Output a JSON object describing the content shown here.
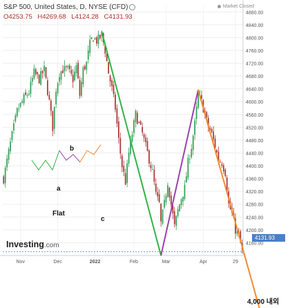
{
  "header": {
    "symbol": "S&P 500, United States, D, NYSE (CFD)",
    "ohlc": {
      "open": "O4253.75",
      "high": "H4269.68",
      "low": "L4124.28",
      "close": "C4131.93"
    },
    "status": "Market Closed"
  },
  "logo": {
    "name": "Investing",
    "suffix": ".com"
  },
  "annotations": {
    "a": "a",
    "b": "b",
    "c": "c",
    "flat": "Flat",
    "target": "4,000 내외"
  },
  "colors": {
    "bull": "#2e9e52",
    "bear": "#a83232",
    "wave_a_green": "#2fb344",
    "wave_b_purple": "#9a3fb0",
    "wave_c_orange": "#f08a2e",
    "price_label": "#4a7fc6"
  },
  "chart_data": {
    "type": "candlestick",
    "title": "S&P 500, United States, D, NYSE (CFD)",
    "y_ticks": [
      4160,
      4200,
      4240,
      4280,
      4320,
      4360,
      4400,
      4440,
      4480,
      4520,
      4560,
      4600,
      4640,
      4680,
      4720,
      4760,
      4800,
      4840,
      4880
    ],
    "y_tick_labels": [
      "4160.00",
      "4200.00",
      "4240.00",
      "4280.00",
      "4320.00",
      "4360.00",
      "4400.00",
      "4440.00",
      "4480.00",
      "4520.00",
      "4560.00",
      "4600.00",
      "4640.00",
      "4680.00",
      "4720.00",
      "4760.00",
      "4800.00",
      "4840.00",
      "4880.00"
    ],
    "ylim": [
      4120,
      4900
    ],
    "x_ticks": [
      {
        "label": "Nov",
        "i": 10
      },
      {
        "label": "Dec",
        "i": 32
      },
      {
        "label": "2022",
        "i": 54
      },
      {
        "label": "Feb",
        "i": 77
      },
      {
        "label": "Mar",
        "i": 96
      },
      {
        "label": "Apr",
        "i": 118
      },
      {
        "label": "29",
        "i": 137
      }
    ],
    "n_bars": 142,
    "current_price": "4131.93",
    "wave_lines": [
      {
        "name": "A",
        "color": "#2fb344",
        "from": {
          "i": 58,
          "y": 4818
        },
        "to": {
          "i": 93,
          "y": 4120
        }
      },
      {
        "name": "B",
        "color": "#9a3fb0",
        "from": {
          "i": 93,
          "y": 4120
        },
        "to": {
          "i": 115,
          "y": 4637
        }
      },
      {
        "name": "C",
        "color": "#f08a2e",
        "from": {
          "i": 115,
          "y": 4637
        },
        "to": {
          "i": 152,
          "y": 3940
        }
      }
    ],
    "flat_pattern_sketch": {
      "green": [
        [
          0,
          0
        ],
        [
          1,
          -1
        ],
        [
          2,
          0
        ],
        [
          3,
          -1
        ],
        [
          4,
          1
        ]
      ],
      "purple": [
        [
          4,
          1
        ],
        [
          5,
          0
        ],
        [
          6,
          0.6
        ],
        [
          7,
          -0.2
        ]
      ],
      "orange": [
        [
          7,
          -0.2
        ],
        [
          8,
          1
        ],
        [
          9,
          0.6
        ],
        [
          10,
          1.6
        ]
      ]
    },
    "anchors": [
      [
        0,
        4360
      ],
      [
        4,
        4470
      ],
      [
        8,
        4570
      ],
      [
        12,
        4610
      ],
      [
        15,
        4630
      ],
      [
        18,
        4690
      ],
      [
        21,
        4670
      ],
      [
        24,
        4700
      ],
      [
        27,
        4600
      ],
      [
        29,
        4520
      ],
      [
        31,
        4640
      ],
      [
        33,
        4690
      ],
      [
        35,
        4700
      ],
      [
        38,
        4700
      ],
      [
        41,
        4670
      ],
      [
        43,
        4710
      ],
      [
        45,
        4620
      ],
      [
        47,
        4700
      ],
      [
        49,
        4720
      ],
      [
        51,
        4780
      ],
      [
        53,
        4800
      ],
      [
        55,
        4790
      ],
      [
        57,
        4800
      ],
      [
        58,
        4810
      ],
      [
        60,
        4760
      ],
      [
        62,
        4690
      ],
      [
        64,
        4640
      ],
      [
        66,
        4580
      ],
      [
        68,
        4480
      ],
      [
        70,
        4400
      ],
      [
        72,
        4350
      ],
      [
        74,
        4440
      ],
      [
        76,
        4500
      ],
      [
        78,
        4560
      ],
      [
        80,
        4530
      ],
      [
        82,
        4500
      ],
      [
        84,
        4460
      ],
      [
        86,
        4420
      ],
      [
        88,
        4380
      ],
      [
        90,
        4310
      ],
      [
        92,
        4280
      ],
      [
        93,
        4220
      ],
      [
        95,
        4280
      ],
      [
        97,
        4350
      ],
      [
        99,
        4280
      ],
      [
        101,
        4210
      ],
      [
        103,
        4260
      ],
      [
        105,
        4300
      ],
      [
        107,
        4330
      ],
      [
        109,
        4410
      ],
      [
        111,
        4460
      ],
      [
        113,
        4530
      ],
      [
        115,
        4620
      ],
      [
        117,
        4600
      ],
      [
        119,
        4560
      ],
      [
        121,
        4520
      ],
      [
        123,
        4500
      ],
      [
        125,
        4460
      ],
      [
        127,
        4420
      ],
      [
        129,
        4410
      ],
      [
        131,
        4380
      ],
      [
        133,
        4280
      ],
      [
        135,
        4250
      ],
      [
        137,
        4200
      ],
      [
        139,
        4180
      ],
      [
        141,
        4132
      ]
    ]
  }
}
